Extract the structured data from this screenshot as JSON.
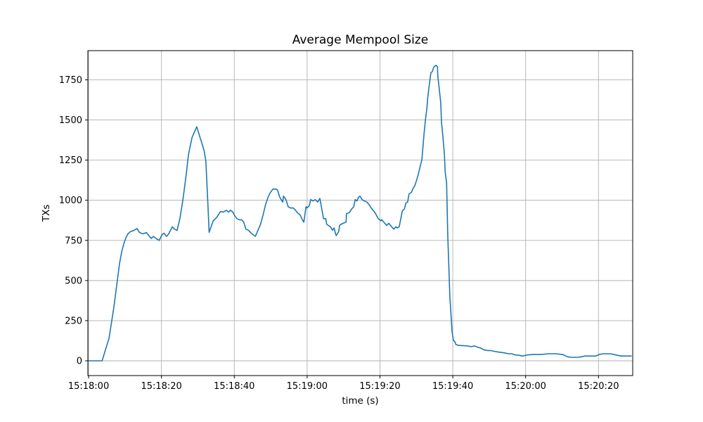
{
  "page": {
    "background": "#ffffff"
  },
  "chart_data": {
    "type": "line",
    "title": "Average Mempool Size",
    "xlabel": "time (s)",
    "ylabel": "TXs",
    "line_color": "#1f77b4",
    "grid": true,
    "grid_color": "#b0b0b0",
    "spine_color": "#000000",
    "text_color": "#000000",
    "legend": "none",
    "xlim_seconds": [
      -0.2,
      149.4
    ],
    "ylim": [
      -92,
      1932
    ],
    "x_tick_seconds": [
      0,
      20,
      40,
      60,
      80,
      100,
      120,
      140
    ],
    "x_tick_labels": [
      "15:18:00",
      "15:18:20",
      "15:18:40",
      "15:19:00",
      "15:19:20",
      "15:19:40",
      "15:20:00",
      "15:20:20"
    ],
    "y_ticks": [
      0,
      250,
      500,
      750,
      1000,
      1250,
      1500,
      1750
    ],
    "y_tick_labels": [
      "0",
      "250",
      "500",
      "750",
      "1000",
      "1250",
      "1500",
      "1750"
    ],
    "series": [
      {
        "points": [
          [
            -0.2,
            0
          ],
          [
            3.7,
            0
          ],
          [
            4.3,
            44
          ],
          [
            5.0,
            95
          ],
          [
            5.6,
            139
          ],
          [
            6.2,
            227
          ],
          [
            6.9,
            329
          ],
          [
            7.5,
            432
          ],
          [
            8.0,
            520
          ],
          [
            8.5,
            608
          ],
          [
            9.1,
            681
          ],
          [
            9.7,
            732
          ],
          [
            10.3,
            769
          ],
          [
            10.8,
            791
          ],
          [
            11.5,
            805
          ],
          [
            12.4,
            812
          ],
          [
            13.3,
            824
          ],
          [
            14.0,
            798
          ],
          [
            14.9,
            791
          ],
          [
            15.9,
            798
          ],
          [
            17.2,
            762
          ],
          [
            17.8,
            775
          ],
          [
            18.8,
            758
          ],
          [
            19.4,
            750
          ],
          [
            20.1,
            784
          ],
          [
            20.7,
            795
          ],
          [
            21.4,
            775
          ],
          [
            22.0,
            791
          ],
          [
            23.0,
            835
          ],
          [
            23.6,
            820
          ],
          [
            24.3,
            812
          ],
          [
            25.1,
            890
          ],
          [
            25.9,
            1004
          ],
          [
            26.8,
            1160
          ],
          [
            27.4,
            1282
          ],
          [
            28.4,
            1392
          ],
          [
            29.7,
            1458
          ],
          [
            30.7,
            1384
          ],
          [
            31.7,
            1311
          ],
          [
            32.2,
            1245
          ],
          [
            32.5,
            1100
          ],
          [
            32.8,
            950
          ],
          [
            33.1,
            800
          ],
          [
            34.2,
            872
          ],
          [
            35.2,
            894
          ],
          [
            36.2,
            930
          ],
          [
            37.0,
            926
          ],
          [
            37.8,
            938
          ],
          [
            38.4,
            926
          ],
          [
            39.0,
            938
          ],
          [
            39.6,
            926
          ],
          [
            40.0,
            908
          ],
          [
            40.7,
            886
          ],
          [
            41.3,
            879
          ],
          [
            42.0,
            879
          ],
          [
            42.6,
            864
          ],
          [
            43.2,
            820
          ],
          [
            43.9,
            813
          ],
          [
            44.5,
            798
          ],
          [
            45.2,
            784
          ],
          [
            45.8,
            776
          ],
          [
            46.5,
            813
          ],
          [
            47.2,
            850
          ],
          [
            47.9,
            908
          ],
          [
            48.6,
            974
          ],
          [
            49.3,
            1020
          ],
          [
            49.9,
            1048
          ],
          [
            50.6,
            1070
          ],
          [
            51.5,
            1070
          ],
          [
            51.9,
            1063
          ],
          [
            52.5,
            1018
          ],
          [
            53.3,
            989
          ],
          [
            53.5,
            1026
          ],
          [
            54.2,
            1004
          ],
          [
            54.8,
            960
          ],
          [
            55.4,
            952
          ],
          [
            56.2,
            952
          ],
          [
            56.8,
            938
          ],
          [
            57.3,
            923
          ],
          [
            58.1,
            908
          ],
          [
            58.7,
            879
          ],
          [
            59.1,
            864
          ],
          [
            59.7,
            960
          ],
          [
            60.0,
            952
          ],
          [
            60.6,
            967
          ],
          [
            61.0,
            1004
          ],
          [
            61.6,
            996
          ],
          [
            62.2,
            1004
          ],
          [
            62.9,
            989
          ],
          [
            63.5,
            1011
          ],
          [
            64.1,
            938
          ],
          [
            64.5,
            886
          ],
          [
            65.1,
            886
          ],
          [
            65.4,
            850
          ],
          [
            66.4,
            835
          ],
          [
            66.8,
            820
          ],
          [
            67.0,
            813
          ],
          [
            67.4,
            828
          ],
          [
            67.8,
            791
          ],
          [
            68.0,
            780
          ],
          [
            68.7,
            806
          ],
          [
            68.9,
            843
          ],
          [
            69.3,
            850
          ],
          [
            69.9,
            857
          ],
          [
            70.7,
            864
          ],
          [
            70.8,
            916
          ],
          [
            71.6,
            923
          ],
          [
            72.2,
            945
          ],
          [
            72.8,
            960
          ],
          [
            73.2,
            1004
          ],
          [
            73.7,
            996
          ],
          [
            74.1,
            1018
          ],
          [
            74.5,
            1026
          ],
          [
            75.1,
            1004
          ],
          [
            75.7,
            996
          ],
          [
            76.4,
            989
          ],
          [
            77.0,
            974
          ],
          [
            77.6,
            952
          ],
          [
            78.4,
            930
          ],
          [
            79.0,
            908
          ],
          [
            79.5,
            886
          ],
          [
            80.3,
            872
          ],
          [
            80.5,
            879
          ],
          [
            81.3,
            857
          ],
          [
            81.9,
            843
          ],
          [
            82.4,
            857
          ],
          [
            83.2,
            835
          ],
          [
            83.8,
            820
          ],
          [
            84.4,
            835
          ],
          [
            84.7,
            828
          ],
          [
            85.3,
            835
          ],
          [
            86.1,
            930
          ],
          [
            86.3,
            938
          ],
          [
            86.7,
            945
          ],
          [
            87.1,
            982
          ],
          [
            87.6,
            989
          ],
          [
            88.0,
            1040
          ],
          [
            88.6,
            1048
          ],
          [
            89.0,
            1070
          ],
          [
            89.6,
            1092
          ],
          [
            90.0,
            1121
          ],
          [
            90.5,
            1160
          ],
          [
            91.1,
            1216
          ],
          [
            91.5,
            1252
          ],
          [
            92.1,
            1414
          ],
          [
            92.5,
            1502
          ],
          [
            92.9,
            1575
          ],
          [
            93.1,
            1633
          ],
          [
            93.4,
            1692
          ],
          [
            93.8,
            1765
          ],
          [
            94.0,
            1795
          ],
          [
            94.4,
            1802
          ],
          [
            94.8,
            1831
          ],
          [
            95.4,
            1841
          ],
          [
            95.8,
            1831
          ],
          [
            95.9,
            1772
          ],
          [
            96.3,
            1692
          ],
          [
            96.7,
            1604
          ],
          [
            96.9,
            1487
          ],
          [
            97.3,
            1392
          ],
          [
            97.7,
            1282
          ],
          [
            97.9,
            1180
          ],
          [
            98.3,
            1106
          ],
          [
            98.6,
            800
          ],
          [
            99.2,
            400
          ],
          [
            99.8,
            183
          ],
          [
            100.2,
            127
          ],
          [
            100.6,
            118
          ],
          [
            100.8,
            103
          ],
          [
            101.5,
            96
          ],
          [
            104.1,
            93
          ],
          [
            105.0,
            88
          ],
          [
            106.0,
            93
          ],
          [
            106.9,
            84
          ],
          [
            107.5,
            81
          ],
          [
            108.5,
            69
          ],
          [
            109.5,
            64
          ],
          [
            110.4,
            64
          ],
          [
            111.4,
            59
          ],
          [
            112.4,
            55
          ],
          [
            113.3,
            52
          ],
          [
            114.3,
            49
          ],
          [
            115.3,
            44
          ],
          [
            116.2,
            44
          ],
          [
            117.2,
            37
          ],
          [
            118.2,
            34
          ],
          [
            119.1,
            30
          ],
          [
            120.5,
            37
          ],
          [
            122.4,
            40
          ],
          [
            124.3,
            40
          ],
          [
            126.3,
            44
          ],
          [
            128.2,
            44
          ],
          [
            130.1,
            40
          ],
          [
            131.5,
            25
          ],
          [
            132.4,
            22
          ],
          [
            133.4,
            22
          ],
          [
            134.4,
            22
          ],
          [
            135.3,
            25
          ],
          [
            136.3,
            30
          ],
          [
            137.2,
            30
          ],
          [
            138.2,
            30
          ],
          [
            139.2,
            30
          ],
          [
            140.3,
            40
          ],
          [
            141.3,
            44
          ],
          [
            142.3,
            44
          ],
          [
            143.2,
            44
          ],
          [
            144.2,
            40
          ],
          [
            145.2,
            34
          ],
          [
            146.2,
            30
          ],
          [
            147.1,
            30
          ],
          [
            148.1,
            30
          ],
          [
            149.0,
            30
          ]
        ]
      }
    ]
  }
}
